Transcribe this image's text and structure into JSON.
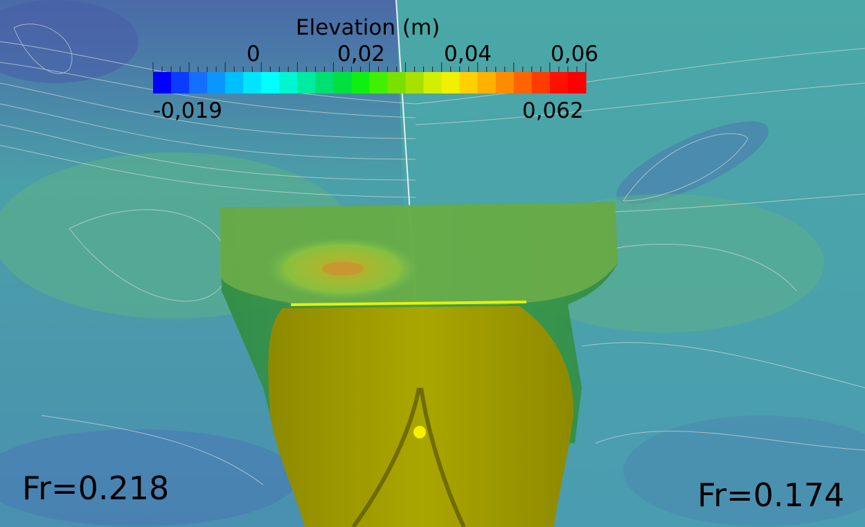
{
  "legend": {
    "title": "Elevation (m)",
    "ticks": [
      "0",
      "0,02",
      "0,04",
      "0,06"
    ],
    "range_min": "-0,019",
    "range_max": "0,062",
    "colors": [
      "#0000ff",
      "#0a3cff",
      "#146eff",
      "#0a96ff",
      "#00bfff",
      "#00e5ff",
      "#00ffff",
      "#00f5d0",
      "#00eaa0",
      "#00e070",
      "#00e040",
      "#10f010",
      "#40f000",
      "#7ae000",
      "#a8e000",
      "#d0f000",
      "#f0f000",
      "#ffd000",
      "#ffb000",
      "#ff8c00",
      "#ff6400",
      "#ff3c00",
      "#ff1000",
      "#ff0000"
    ]
  },
  "labels": {
    "left_froude": "Fr=0.218",
    "right_froude": "Fr=0.174"
  },
  "colors": {
    "water_base": "#4aa3a4",
    "water_low": "#4a7fb0",
    "water_high": "#5db58c",
    "hull": "#a8a400",
    "cylinder": "#3a9a3a",
    "contour": "#d0d8d8"
  }
}
